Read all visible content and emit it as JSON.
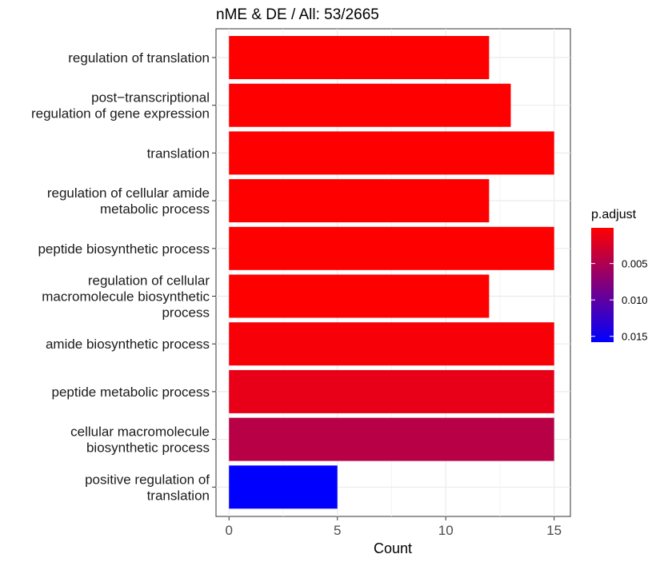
{
  "chart_data": {
    "type": "bar",
    "orientation": "horizontal",
    "title": "nME & DE / All: 53/2665",
    "xlabel": "Count",
    "ylabel": "",
    "xlim": [
      -0.6,
      15.75
    ],
    "xticks": [
      0,
      5,
      10,
      15
    ],
    "grid": true,
    "categories": [
      [
        "regulation of translation"
      ],
      [
        "post−transcriptional",
        "regulation of gene expression"
      ],
      [
        "translation"
      ],
      [
        "regulation of cellular amide",
        "metabolic process"
      ],
      [
        "peptide biosynthetic process"
      ],
      [
        "regulation of cellular",
        "macromolecule biosynthetic",
        "process"
      ],
      [
        "amide biosynthetic process"
      ],
      [
        "peptide metabolic process"
      ],
      [
        "cellular macromolecule",
        "biosynthetic process"
      ],
      [
        "positive regulation of",
        "translation"
      ]
    ],
    "values": [
      12,
      13,
      15,
      12,
      15,
      12,
      15,
      15,
      15,
      5
    ],
    "p_adjust": [
      0.0001,
      0.0001,
      0.0001,
      0.0001,
      0.0001,
      0.0001,
      0.0006,
      0.0016,
      0.0045,
      0.0158
    ],
    "color_scale": {
      "title": "p.adjust",
      "low_color": "#FF0000",
      "high_color": "#0000FF",
      "range": [
        0.0001,
        0.0158
      ],
      "ticks": [
        0.005,
        0.01,
        0.015
      ],
      "tick_labels": [
        "0.005",
        "0.010",
        "0.015"
      ]
    },
    "legend_position": "right"
  }
}
